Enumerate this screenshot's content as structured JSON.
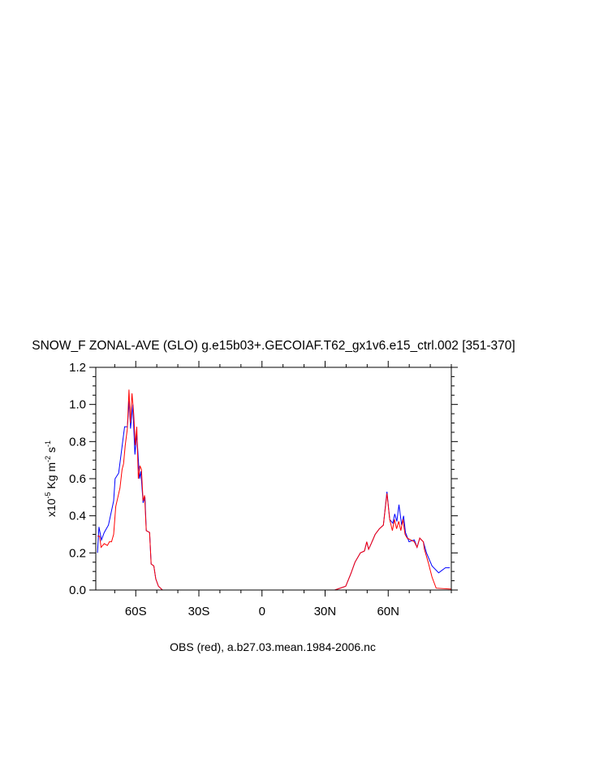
{
  "chart_data": {
    "type": "line",
    "title": "SNOW_F ZONAL-AVE (GLO) g.e15b03+.GECOIAF.T62_gx1v6.e15_ctrl.002 [351-370]",
    "ylabel_prefix": "x10",
    "ylabel_exp": "-5",
    "ylabel_unit1": " Kg m",
    "ylabel_exp2": "-2",
    "ylabel_unit2": " s",
    "ylabel_exp3": "-1",
    "footer": "OBS (red), a.b27.03.mean.1984-2006.nc",
    "xlim": [
      -79,
      90
    ],
    "ylim": [
      0,
      1.2
    ],
    "xticks": [
      {
        "v": -60,
        "label": "60S"
      },
      {
        "v": -30,
        "label": "30S"
      },
      {
        "v": 0,
        "label": "0"
      },
      {
        "v": 30,
        "label": "30N"
      },
      {
        "v": 60,
        "label": "60N"
      }
    ],
    "yticks": [
      {
        "v": 0,
        "label": "0.0"
      },
      {
        "v": 0.2,
        "label": "0.2"
      },
      {
        "v": 0.4,
        "label": "0.4"
      },
      {
        "v": 0.6,
        "label": "0.6"
      },
      {
        "v": 0.8,
        "label": "0.8"
      },
      {
        "v": 1.0,
        "label": "1.0"
      },
      {
        "v": 1.2,
        "label": "1.2"
      }
    ],
    "x_minor_step": 10,
    "y_minor_step": 0.05,
    "grid": false,
    "series": [
      {
        "color": "#0000ff",
        "points": [
          [
            -78.2,
            0.2
          ],
          [
            -77.5,
            0.34
          ],
          [
            -76.3,
            0.27
          ],
          [
            -75,
            0.31
          ],
          [
            -73,
            0.35
          ],
          [
            -70.5,
            0.48
          ],
          [
            -69.8,
            0.6
          ],
          [
            -68.1,
            0.63
          ],
          [
            -65.3,
            0.88
          ],
          [
            -64,
            0.88
          ],
          [
            -63.1,
            1.02
          ],
          [
            -62.5,
            0.87
          ],
          [
            -61.4,
            1.0
          ],
          [
            -60.4,
            0.73
          ],
          [
            -59.5,
            0.84
          ],
          [
            -58.2,
            0.6
          ],
          [
            -57.6,
            0.64
          ],
          [
            -56.5,
            0.47
          ],
          [
            -55.6,
            0.5
          ],
          [
            -55,
            0.32
          ],
          [
            -53.4,
            0.31
          ],
          [
            -52.7,
            0.14
          ],
          [
            -51.4,
            0.13
          ],
          [
            -50.5,
            0.06
          ],
          [
            -49.2,
            0.02
          ],
          [
            -47.3,
            0.0
          ],
          [
            34.6,
            0.0
          ],
          [
            39.8,
            0.02
          ],
          [
            42.3,
            0.09
          ],
          [
            44.2,
            0.15
          ],
          [
            46.8,
            0.2
          ],
          [
            48.7,
            0.21
          ],
          [
            49.8,
            0.26
          ],
          [
            50.7,
            0.22
          ],
          [
            51.9,
            0.25
          ],
          [
            53.8,
            0.3
          ],
          [
            55.8,
            0.33
          ],
          [
            57.7,
            0.35
          ],
          [
            59.4,
            0.53
          ],
          [
            60.7,
            0.38
          ],
          [
            62.2,
            0.36
          ],
          [
            63.1,
            0.41
          ],
          [
            64.1,
            0.37
          ],
          [
            65.1,
            0.46
          ],
          [
            66.4,
            0.35
          ],
          [
            67.3,
            0.4
          ],
          [
            68.2,
            0.31
          ],
          [
            69.9,
            0.26
          ],
          [
            72.4,
            0.27
          ],
          [
            73.7,
            0.23
          ],
          [
            75,
            0.28
          ],
          [
            76.7,
            0.26
          ],
          [
            78.2,
            0.2
          ],
          [
            80.8,
            0.13
          ],
          [
            84,
            0.093
          ],
          [
            87.2,
            0.12
          ],
          [
            89.3,
            0.12
          ]
        ]
      },
      {
        "color": "#ff0000",
        "points": [
          [
            -78.2,
            0.29
          ],
          [
            -77.2,
            0.29
          ],
          [
            -76.5,
            0.23
          ],
          [
            -75,
            0.25
          ],
          [
            -73.5,
            0.24
          ],
          [
            -72.5,
            0.26
          ],
          [
            -71.5,
            0.26
          ],
          [
            -70.5,
            0.3
          ],
          [
            -69.5,
            0.45
          ],
          [
            -68.5,
            0.5
          ],
          [
            -67.5,
            0.55
          ],
          [
            -66.5,
            0.65
          ],
          [
            -65.8,
            0.68
          ],
          [
            -65,
            0.78
          ],
          [
            -64,
            0.87
          ],
          [
            -63.2,
            1.08
          ],
          [
            -62.6,
            0.9
          ],
          [
            -61.8,
            1.06
          ],
          [
            -61,
            0.95
          ],
          [
            -60.2,
            0.78
          ],
          [
            -59.5,
            0.88
          ],
          [
            -58.8,
            0.6
          ],
          [
            -58,
            0.67
          ],
          [
            -57.3,
            0.65
          ],
          [
            -56.5,
            0.48
          ],
          [
            -55.8,
            0.51
          ],
          [
            -55,
            0.32
          ],
          [
            -53.4,
            0.31
          ],
          [
            -52.7,
            0.14
          ],
          [
            -51.4,
            0.13
          ],
          [
            -50.5,
            0.06
          ],
          [
            -49.2,
            0.02
          ],
          [
            -47.3,
            0.0
          ],
          [
            34.6,
            0.0
          ],
          [
            39.8,
            0.02
          ],
          [
            42.3,
            0.09
          ],
          [
            44.2,
            0.15
          ],
          [
            46.8,
            0.2
          ],
          [
            48.7,
            0.21
          ],
          [
            49.8,
            0.26
          ],
          [
            50.7,
            0.22
          ],
          [
            51.9,
            0.25
          ],
          [
            53.8,
            0.3
          ],
          [
            55.8,
            0.33
          ],
          [
            57.7,
            0.35
          ],
          [
            59.4,
            0.52
          ],
          [
            60.7,
            0.38
          ],
          [
            62,
            0.32
          ],
          [
            63,
            0.38
          ],
          [
            64,
            0.33
          ],
          [
            65,
            0.37
          ],
          [
            66,
            0.32
          ],
          [
            67,
            0.38
          ],
          [
            68,
            0.3
          ],
          [
            69,
            0.28
          ],
          [
            72.4,
            0.26
          ],
          [
            73.7,
            0.23
          ],
          [
            75,
            0.28
          ],
          [
            76.7,
            0.26
          ],
          [
            77.2,
            0.22
          ],
          [
            79,
            0.15
          ],
          [
            80.8,
            0.07
          ],
          [
            82.8,
            0.01
          ],
          [
            90,
            0.005
          ]
        ]
      }
    ]
  }
}
